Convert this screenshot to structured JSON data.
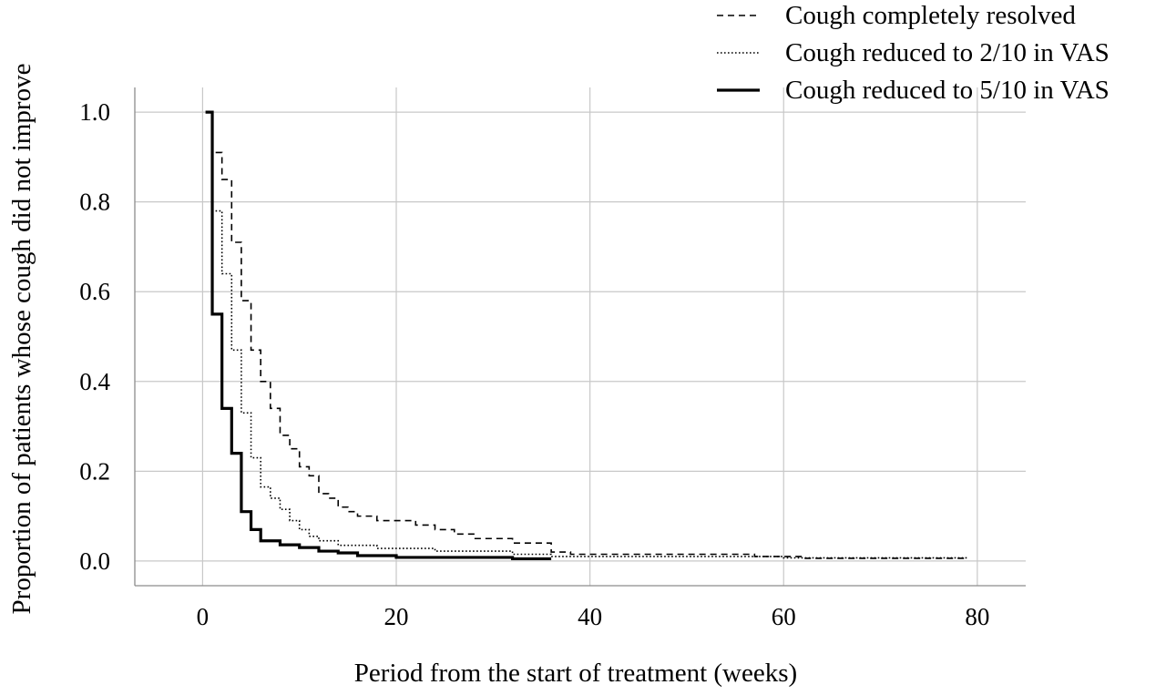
{
  "chart_data": {
    "type": "line",
    "step": true,
    "title": "",
    "xlabel": "Period from the start of treatment (weeks)",
    "ylabel": "Proportion of patients whose cough did not improve",
    "xlim": [
      -7,
      85
    ],
    "ylim": [
      -0.055,
      1.055
    ],
    "xticks": [
      0,
      20,
      40,
      60,
      80
    ],
    "yticks": [
      0.0,
      0.2,
      0.4,
      0.6,
      0.8,
      1.0
    ],
    "xtick_labels": [
      "0",
      "20",
      "40",
      "60",
      "80"
    ],
    "ytick_labels": [
      "0.0",
      "0.2",
      "0.4",
      "0.6",
      "0.8",
      "1.0"
    ],
    "grid": true,
    "legend_position": "top-right",
    "series": [
      {
        "name": "Cough completely resolved",
        "dash": "dashed",
        "stroke_width": 1.6,
        "points": [
          [
            1,
            1.0
          ],
          [
            1,
            0.91
          ],
          [
            2,
            0.91
          ],
          [
            2,
            0.85
          ],
          [
            3,
            0.85
          ],
          [
            3,
            0.71
          ],
          [
            4,
            0.71
          ],
          [
            4,
            0.58
          ],
          [
            5,
            0.58
          ],
          [
            5,
            0.47
          ],
          [
            6,
            0.47
          ],
          [
            6,
            0.4
          ],
          [
            7,
            0.4
          ],
          [
            7,
            0.34
          ],
          [
            8,
            0.34
          ],
          [
            8,
            0.28
          ],
          [
            9,
            0.28
          ],
          [
            9,
            0.25
          ],
          [
            10,
            0.25
          ],
          [
            10,
            0.21
          ],
          [
            11,
            0.21
          ],
          [
            11,
            0.19
          ],
          [
            12,
            0.19
          ],
          [
            12,
            0.15
          ],
          [
            13,
            0.15
          ],
          [
            13,
            0.14
          ],
          [
            14,
            0.14
          ],
          [
            14,
            0.12
          ],
          [
            15,
            0.12
          ],
          [
            15,
            0.11
          ],
          [
            16,
            0.11
          ],
          [
            16,
            0.1
          ],
          [
            18,
            0.1
          ],
          [
            18,
            0.09
          ],
          [
            22,
            0.09
          ],
          [
            22,
            0.08
          ],
          [
            24,
            0.08
          ],
          [
            24,
            0.07
          ],
          [
            26,
            0.07
          ],
          [
            26,
            0.06
          ],
          [
            28,
            0.06
          ],
          [
            28,
            0.05
          ],
          [
            32,
            0.05
          ],
          [
            32,
            0.04
          ],
          [
            36,
            0.04
          ],
          [
            36,
            0.02
          ],
          [
            38,
            0.02
          ],
          [
            38,
            0.015
          ],
          [
            57,
            0.015
          ],
          [
            57,
            0.01
          ],
          [
            62,
            0.01
          ],
          [
            62,
            0.006
          ],
          [
            79,
            0.006
          ]
        ]
      },
      {
        "name": "Cough reduced to 2/10 in VAS",
        "dash": "dotted",
        "stroke_width": 1.6,
        "points": [
          [
            1,
            1.0
          ],
          [
            1,
            0.78
          ],
          [
            2,
            0.78
          ],
          [
            2,
            0.64
          ],
          [
            3,
            0.64
          ],
          [
            3,
            0.47
          ],
          [
            4,
            0.47
          ],
          [
            4,
            0.33
          ],
          [
            5,
            0.33
          ],
          [
            5,
            0.23
          ],
          [
            6,
            0.23
          ],
          [
            6,
            0.165
          ],
          [
            7,
            0.165
          ],
          [
            7,
            0.14
          ],
          [
            8,
            0.14
          ],
          [
            8,
            0.115
          ],
          [
            9,
            0.115
          ],
          [
            9,
            0.09
          ],
          [
            10,
            0.09
          ],
          [
            10,
            0.07
          ],
          [
            11,
            0.07
          ],
          [
            11,
            0.055
          ],
          [
            12,
            0.055
          ],
          [
            12,
            0.045
          ],
          [
            14,
            0.045
          ],
          [
            14,
            0.035
          ],
          [
            18,
            0.035
          ],
          [
            18,
            0.028
          ],
          [
            24,
            0.028
          ],
          [
            24,
            0.022
          ],
          [
            32,
            0.022
          ],
          [
            32,
            0.015
          ],
          [
            36,
            0.015
          ],
          [
            36,
            0.01
          ],
          [
            60,
            0.01
          ],
          [
            60,
            0.007
          ],
          [
            79,
            0.007
          ]
        ]
      },
      {
        "name": "Cough reduced to 5/10 in VAS",
        "dash": "solid",
        "stroke_width": 3.2,
        "points": [
          [
            0.3,
            1.0
          ],
          [
            1,
            1.0
          ],
          [
            1,
            0.55
          ],
          [
            2,
            0.55
          ],
          [
            2,
            0.34
          ],
          [
            3,
            0.34
          ],
          [
            3,
            0.24
          ],
          [
            4,
            0.24
          ],
          [
            4,
            0.11
          ],
          [
            5,
            0.11
          ],
          [
            5,
            0.07
          ],
          [
            6,
            0.07
          ],
          [
            6,
            0.045
          ],
          [
            8,
            0.045
          ],
          [
            8,
            0.036
          ],
          [
            10,
            0.036
          ],
          [
            10,
            0.03
          ],
          [
            12,
            0.03
          ],
          [
            12,
            0.022
          ],
          [
            14,
            0.022
          ],
          [
            14,
            0.018
          ],
          [
            16,
            0.018
          ],
          [
            16,
            0.012
          ],
          [
            20,
            0.012
          ],
          [
            20,
            0.008
          ],
          [
            32,
            0.008
          ],
          [
            32,
            0.005
          ],
          [
            36,
            0.005
          ]
        ]
      }
    ]
  }
}
